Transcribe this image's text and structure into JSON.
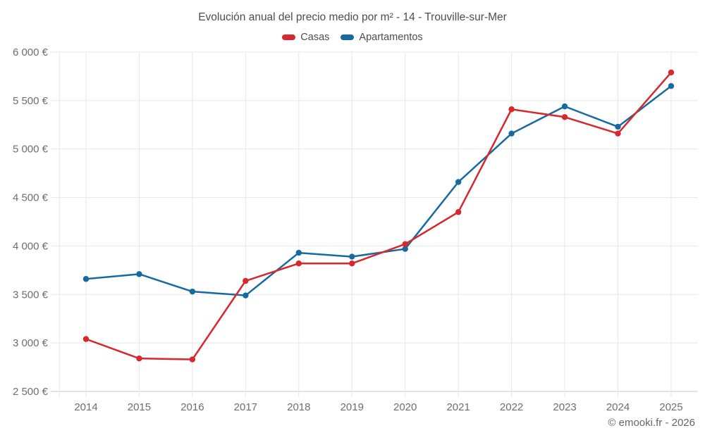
{
  "title": "Evolución anual del precio medio por m² - 14 - Trouville-sur-Mer",
  "footer": {
    "credit": "© emooki.fr - 2026"
  },
  "colors": {
    "grid": "#e7e7e7",
    "axis_line": "#c9c9c9",
    "tick_text": "#6e6e6e",
    "title_text": "#4d4d4d",
    "casas": "#d7282d",
    "apartamentos": "#176a9f"
  },
  "chart_data": {
    "type": "line",
    "x": [
      "2014",
      "2015",
      "2016",
      "2017",
      "2018",
      "2019",
      "2020",
      "2021",
      "2022",
      "2023",
      "2024",
      "2025"
    ],
    "series": [
      {
        "name": "Casas",
        "color": "#d7282d",
        "values": [
          3040,
          2840,
          2830,
          3640,
          3820,
          3820,
          4020,
          4350,
          5410,
          5330,
          5160,
          5790
        ]
      },
      {
        "name": "Apartamentos",
        "color": "#176a9f",
        "values": [
          3660,
          3710,
          3530,
          3490,
          3930,
          3890,
          3970,
          4660,
          5160,
          5440,
          5230,
          5650
        ]
      }
    ],
    "ylim": [
      2500,
      6000
    ],
    "yticks": [
      2500,
      3000,
      3500,
      4000,
      4500,
      5000,
      5500,
      6000
    ],
    "ytick_labels": [
      "2 500 €",
      "3 000 €",
      "3 500 €",
      "4 000 €",
      "4 500 €",
      "5 000 €",
      "5 500 €",
      "6 000 €"
    ],
    "grid": true,
    "legend_position": "top",
    "marker": "circle"
  }
}
